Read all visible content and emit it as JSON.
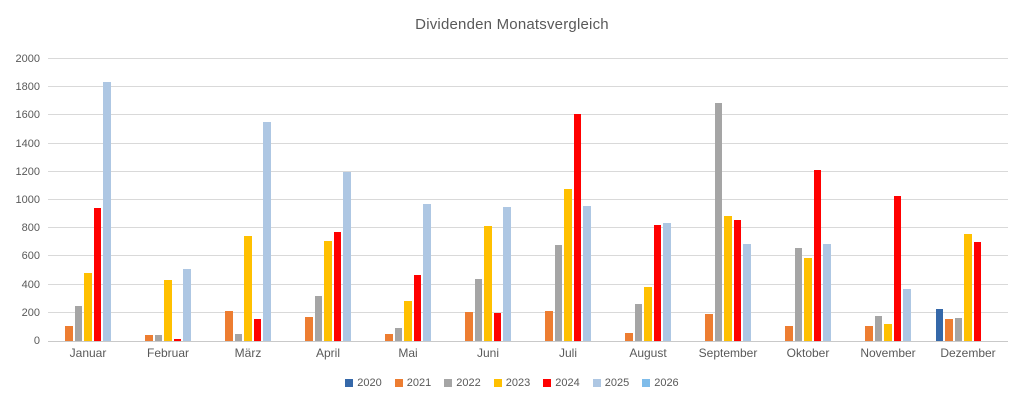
{
  "title": "Dividenden Monatsvergleich",
  "chart_data": {
    "type": "bar",
    "title": "Dividenden Monatsvergleich",
    "categories": [
      "Januar",
      "Februar",
      "März",
      "April",
      "Mai",
      "Juni",
      "Juli",
      "August",
      "September",
      "Oktober",
      "November",
      "Dezember"
    ],
    "series": [
      {
        "name": "2020",
        "color": "#3568A9",
        "values": [
          null,
          null,
          null,
          null,
          null,
          null,
          null,
          null,
          null,
          null,
          null,
          230
        ]
      },
      {
        "name": "2021",
        "color": "#ED7D31",
        "values": [
          110,
          45,
          210,
          170,
          50,
          205,
          210,
          60,
          195,
          105,
          105,
          155
        ]
      },
      {
        "name": "2022",
        "color": "#A5A5A5",
        "values": [
          250,
          40,
          50,
          320,
          95,
          440,
          680,
          265,
          1690,
          660,
          180,
          165
        ]
      },
      {
        "name": "2023",
        "color": "#FFC000",
        "values": [
          480,
          430,
          745,
          710,
          285,
          815,
          1080,
          385,
          890,
          590,
          120,
          760
        ]
      },
      {
        "name": "2024",
        "color": "#FF0000",
        "values": [
          945,
          15,
          155,
          775,
          470,
          200,
          1610,
          820,
          860,
          1210,
          1030,
          700
        ]
      },
      {
        "name": "2025",
        "color": "#AEC7E3",
        "values": [
          1840,
          510,
          1550,
          1200,
          975,
          950,
          960,
          840,
          690,
          690,
          370,
          null
        ]
      },
      {
        "name": "2026",
        "color": "#7FBCEA",
        "values": [
          null,
          null,
          null,
          null,
          null,
          null,
          null,
          null,
          null,
          null,
          null,
          null
        ]
      }
    ],
    "ylim": [
      0,
      2000
    ],
    "ytick_step": 200,
    "grid": true,
    "legend_position": "bottom"
  },
  "colors": {
    "text": "#595959",
    "grid": "#D9D9D9",
    "axis": "#C9C9C9",
    "background": "#FFFFFF"
  }
}
